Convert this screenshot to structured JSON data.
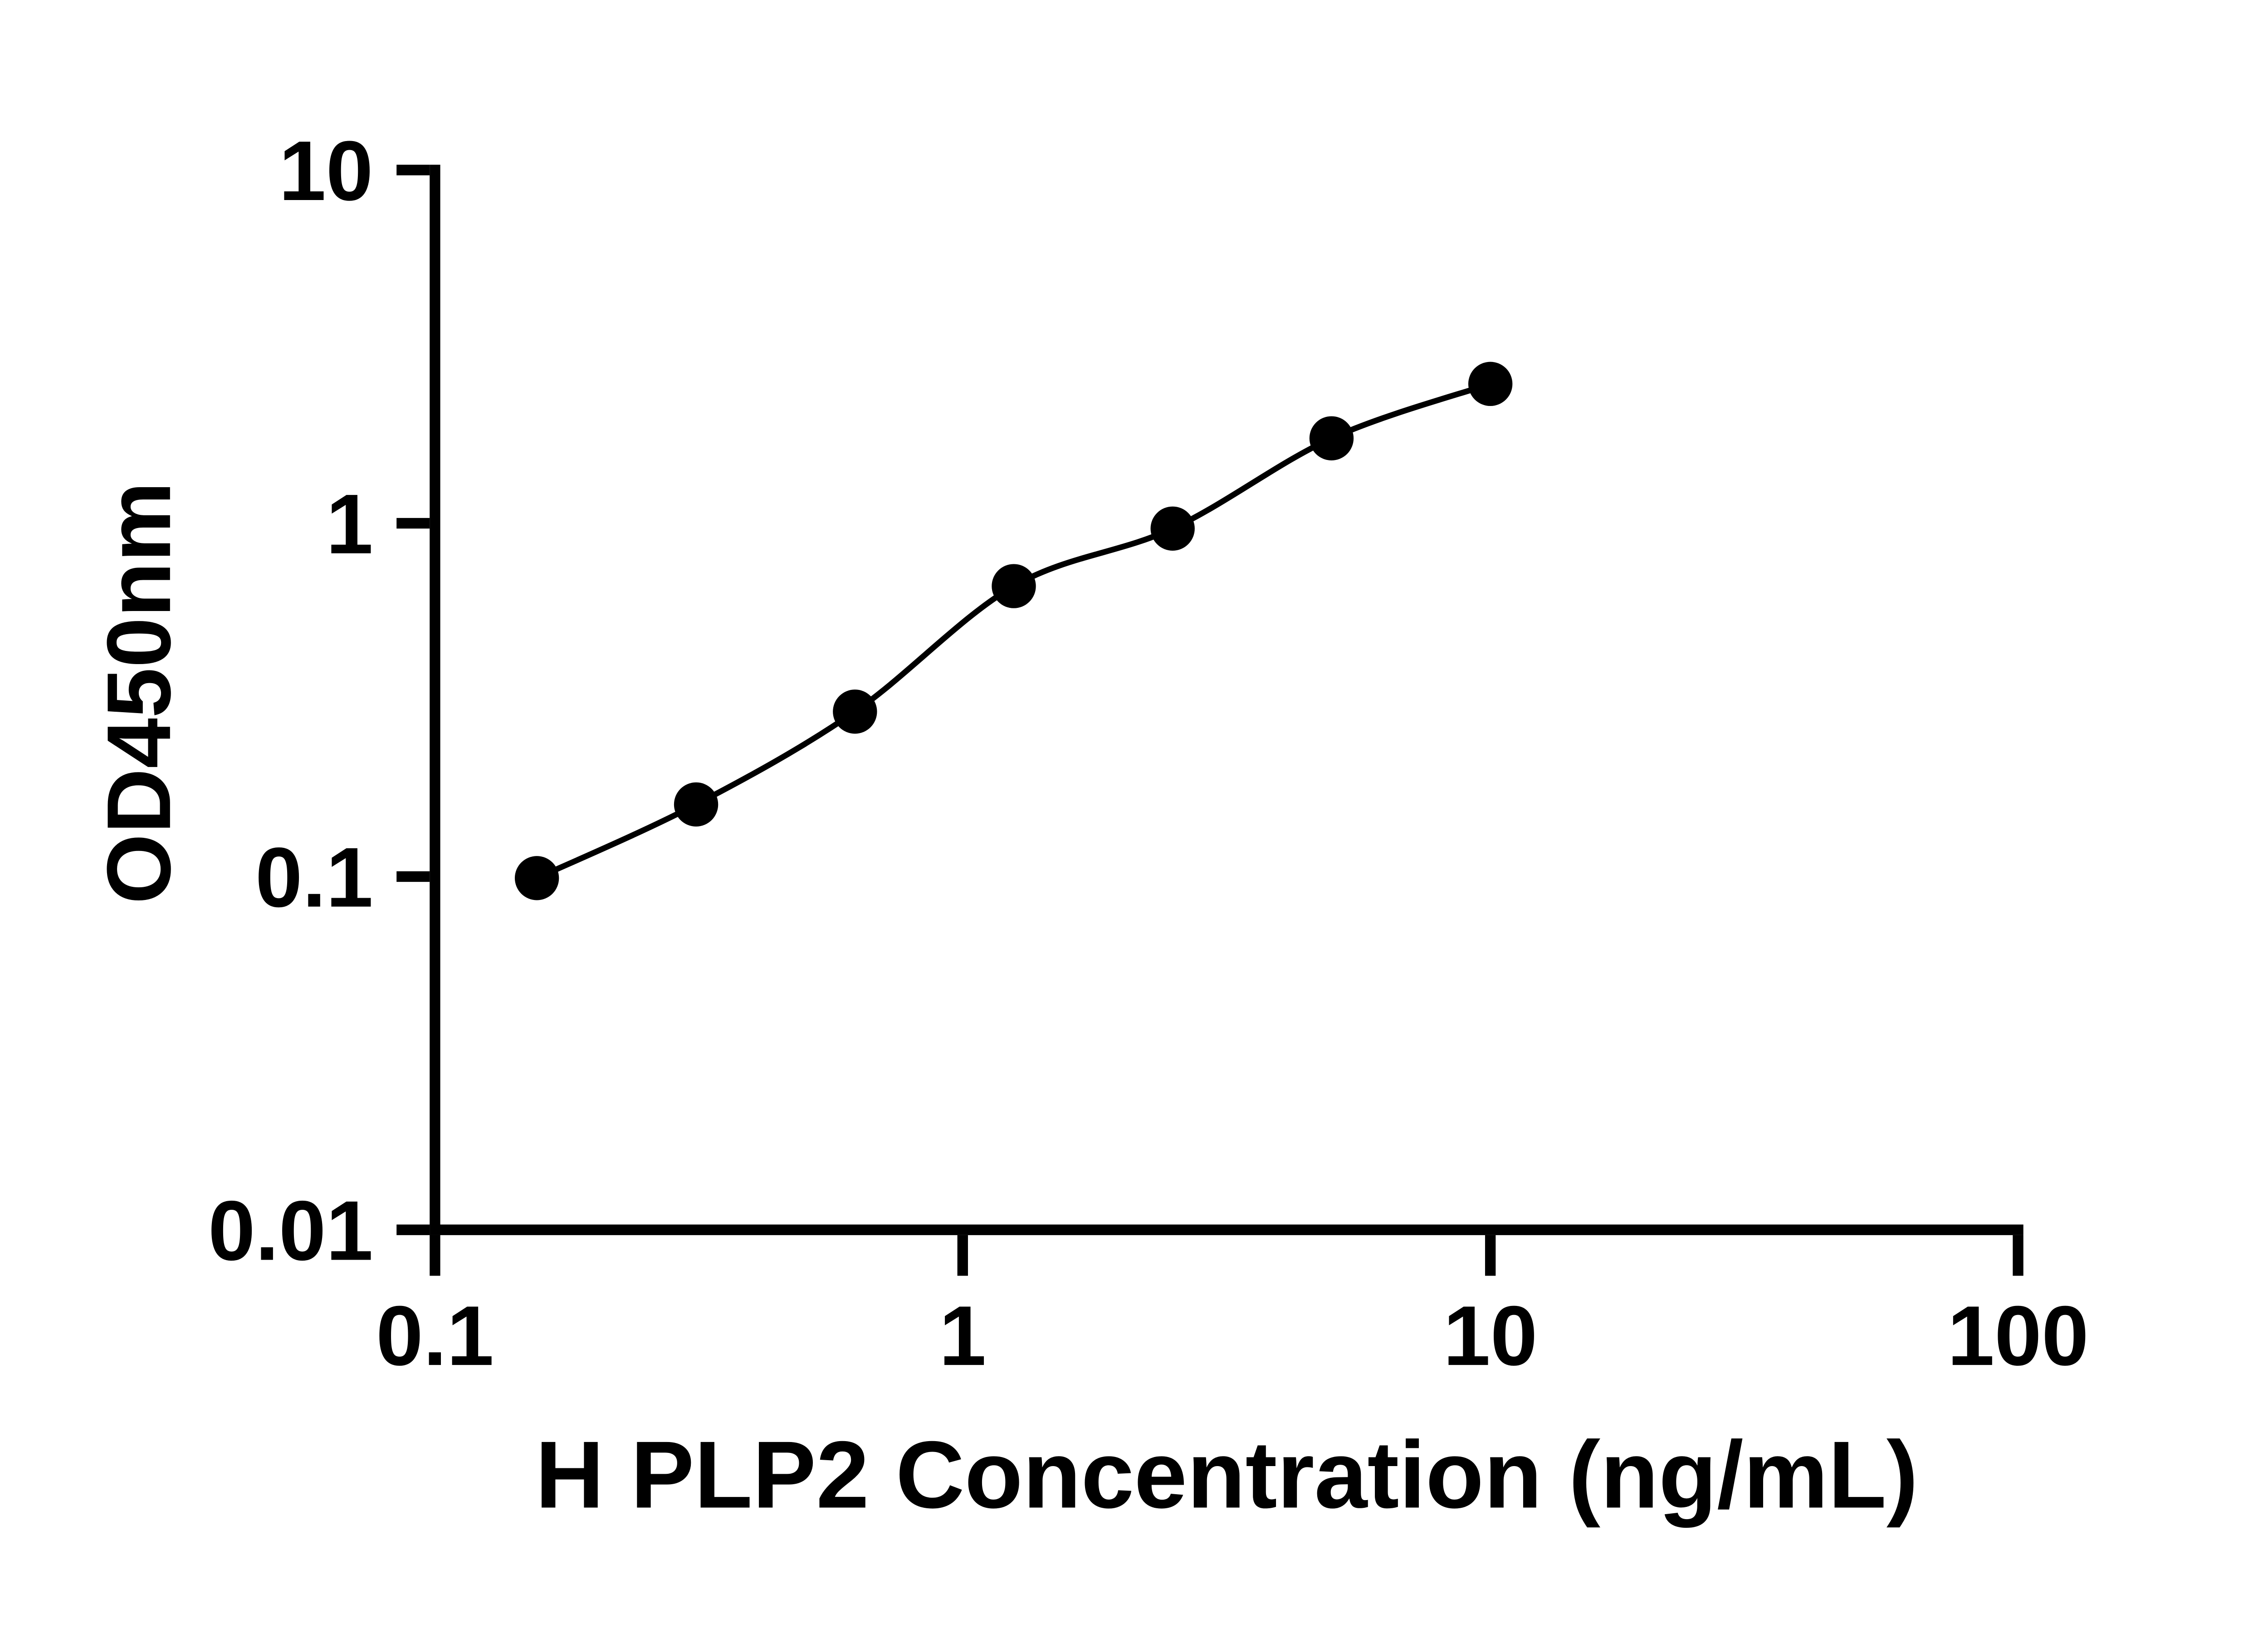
{
  "page": {
    "background": "#ffffff"
  },
  "chart_data": {
    "type": "scatter",
    "subtype": "log-log ELISA standard curve with smooth fitted line",
    "title": "",
    "xlabel": "H PLP2 Concentration (ng/mL)",
    "ylabel": "OD450nm",
    "x_scale": "log10",
    "y_scale": "log10",
    "xlim": [
      0.1,
      100
    ],
    "ylim": [
      0.01,
      10
    ],
    "x_ticks": [
      0.1,
      1,
      10,
      100
    ],
    "x_tick_labels": [
      "0.1",
      "1",
      "10",
      "100"
    ],
    "y_ticks": [
      0.01,
      0.1,
      1,
      10
    ],
    "y_tick_labels": [
      "0.01",
      "0.1",
      "1",
      "10"
    ],
    "grid": false,
    "legend": false,
    "series": [
      {
        "name": "H PLP2",
        "marker": "filled-circle",
        "color": "#000000",
        "x": [
          0.156,
          0.3125,
          0.625,
          1.25,
          2.5,
          5,
          10
        ],
        "y": [
          0.099,
          0.16,
          0.293,
          0.664,
          0.966,
          1.74,
          2.48
        ]
      }
    ],
    "colors": {
      "axis": "#000000",
      "marker": "#000000",
      "line": "#000000",
      "background": "#ffffff"
    }
  }
}
